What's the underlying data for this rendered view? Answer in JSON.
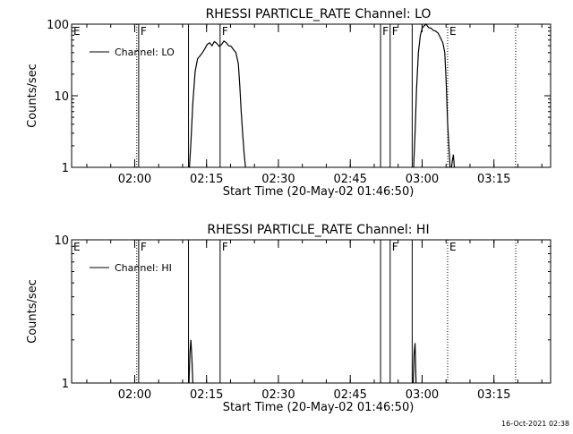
{
  "footer": {
    "stamp": "16-Oct-2021 02:38"
  },
  "chart_data": [
    {
      "type": "line",
      "title": "RHESSI PARTICLE_RATE Channel: LO",
      "xlabel": "Start Time (20-May-02 01:46:50)",
      "ylabel": "Counts/sec",
      "y_scale": "log",
      "ylim": [
        1,
        100
      ],
      "yticks": [
        {
          "value": 1,
          "label": "1"
        },
        {
          "value": 10,
          "label": "10"
        },
        {
          "value": 100,
          "label": "100"
        }
      ],
      "xlim_minutes": [
        0,
        100
      ],
      "xticks": [
        {
          "value": 13.17,
          "label": "02:00"
        },
        {
          "value": 28.17,
          "label": "02:15"
        },
        {
          "value": 43.17,
          "label": "02:30"
        },
        {
          "value": 58.17,
          "label": "02:45"
        },
        {
          "value": 73.17,
          "label": "03:00"
        },
        {
          "value": 88.17,
          "label": "03:15"
        }
      ],
      "legend": {
        "position": "top-left",
        "label": "Channel: LO"
      },
      "markers": [
        {
          "label": "E",
          "x": 0.5,
          "style": "none"
        },
        {
          "label": "F",
          "x": 14.0,
          "style": "solid"
        },
        {
          "label": "F",
          "x": 31.0,
          "style": "solid"
        },
        {
          "label": "F",
          "x": 64.5,
          "style": "solid"
        },
        {
          "label": "F",
          "x": 66.5,
          "style": "solid"
        },
        {
          "label": "E",
          "x": 78.5,
          "style": "dotted"
        }
      ],
      "extra_lines": [
        {
          "x": 13.6,
          "style": "dotted"
        },
        {
          "x": 24.4,
          "style": "solid"
        },
        {
          "x": 71.1,
          "style": "solid"
        },
        {
          "x": 92.7,
          "style": "dotted"
        }
      ],
      "series": [
        {
          "x": [
            24.6,
            24.9,
            25.3,
            25.8,
            26.3,
            26.8,
            27.3,
            27.8,
            28.3,
            28.8,
            29.3,
            29.8,
            30.3,
            30.8,
            31.3,
            31.8,
            32.3,
            32.8,
            33.3,
            33.8,
            34.3,
            34.8,
            35.1,
            35.4,
            35.7,
            36.0,
            36.3
          ],
          "y": [
            1.0,
            2.2,
            8.0,
            22,
            33,
            36,
            40,
            45,
            52,
            55,
            50,
            57,
            54,
            49,
            52,
            58,
            55,
            50,
            49,
            44,
            40,
            28,
            14,
            6,
            3,
            1.6,
            1.0
          ]
        },
        {
          "x": [
            71.4,
            71.7,
            72.0,
            72.4,
            72.8,
            73.2,
            73.6,
            74.0,
            74.5,
            75.0,
            75.5,
            76.0,
            76.5,
            77.0,
            77.5,
            77.9,
            78.2,
            78.5,
            78.8,
            79.0
          ],
          "y": [
            1.0,
            3.0,
            12,
            40,
            70,
            88,
            95,
            100,
            90,
            88,
            82,
            80,
            75,
            65,
            55,
            40,
            15,
            4,
            1.8,
            1.0
          ]
        },
        {
          "x": [
            79.3,
            79.5,
            79.7,
            79.9
          ],
          "y": [
            1.0,
            1.25,
            1.5,
            1.0
          ]
        }
      ]
    },
    {
      "type": "line",
      "title": "RHESSI PARTICLE_RATE Channel: HI",
      "xlabel": "Start Time (20-May-02 01:46:50)",
      "ylabel": "Counts/sec",
      "y_scale": "log",
      "ylim": [
        1,
        10
      ],
      "yticks": [
        {
          "value": 1,
          "label": "1"
        },
        {
          "value": 10,
          "label": "10"
        }
      ],
      "xlim_minutes": [
        0,
        100
      ],
      "xticks": [
        {
          "value": 13.17,
          "label": "02:00"
        },
        {
          "value": 28.17,
          "label": "02:15"
        },
        {
          "value": 43.17,
          "label": "02:30"
        },
        {
          "value": 58.17,
          "label": "02:45"
        },
        {
          "value": 73.17,
          "label": "03:00"
        },
        {
          "value": 88.17,
          "label": "03:15"
        }
      ],
      "legend": {
        "position": "top-left",
        "label": "Channel: HI"
      },
      "markers": [
        {
          "label": "E",
          "x": 0.5,
          "style": "none"
        },
        {
          "label": "F",
          "x": 14.0,
          "style": "solid"
        },
        {
          "label": "F",
          "x": 31.0,
          "style": "solid"
        },
        {
          "label": "F",
          "x": 66.5,
          "style": "solid"
        },
        {
          "label": "E",
          "x": 78.5,
          "style": "dotted"
        }
      ],
      "extra_lines": [
        {
          "x": 13.6,
          "style": "dotted"
        },
        {
          "x": 24.4,
          "style": "solid"
        },
        {
          "x": 64.5,
          "style": "solid"
        },
        {
          "x": 71.1,
          "style": "solid"
        },
        {
          "x": 92.7,
          "style": "dotted"
        }
      ],
      "series": [
        {
          "x": [
            24.5,
            24.7,
            24.9,
            25.1,
            25.3
          ],
          "y": [
            1.0,
            1.6,
            2.0,
            1.5,
            1.0
          ]
        },
        {
          "x": [
            71.3,
            71.5,
            71.7,
            71.9
          ],
          "y": [
            1.0,
            1.6,
            1.9,
            1.0
          ]
        }
      ]
    }
  ]
}
